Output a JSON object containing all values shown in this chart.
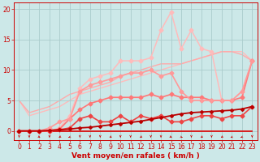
{
  "title": "",
  "xlabel": "Vent moyen/en rafales ( km/h )",
  "xlim": [
    -0.5,
    23.5
  ],
  "ylim": [
    -1.5,
    21
  ],
  "yticks": [
    0,
    5,
    10,
    15,
    20
  ],
  "xticks": [
    0,
    1,
    2,
    3,
    4,
    5,
    6,
    7,
    8,
    9,
    10,
    11,
    12,
    13,
    14,
    15,
    16,
    17,
    18,
    19,
    20,
    21,
    22,
    23
  ],
  "bg_color": "#cce8e8",
  "grid_color": "#aacccc",
  "series": [
    {
      "x": [
        0,
        1,
        2,
        3,
        4,
        5,
        6,
        7,
        8,
        9,
        10,
        11,
        12,
        13,
        14,
        15,
        16,
        17,
        18,
        19,
        20,
        21,
        22,
        23
      ],
      "y": [
        0,
        0,
        0,
        0,
        0,
        0,
        0,
        0,
        0,
        0,
        0,
        0,
        0,
        0,
        0,
        0,
        0,
        0,
        0,
        0,
        0,
        0,
        0,
        0
      ],
      "color": "#dd0000",
      "linewidth": 1.2,
      "marker": null,
      "markersize": 0,
      "zorder": 3
    },
    {
      "x": [
        0,
        1,
        2,
        3,
        4,
        5,
        6,
        7,
        8,
        9,
        10,
        11,
        12,
        13,
        14,
        15,
        16,
        17,
        18,
        19,
        20,
        21,
        22,
        23
      ],
      "y": [
        0,
        0,
        0,
        0.1,
        0.2,
        0.3,
        0.5,
        0.6,
        0.8,
        1.0,
        1.2,
        1.4,
        1.6,
        1.9,
        2.2,
        2.5,
        2.8,
        3.0,
        3.1,
        3.2,
        3.3,
        3.4,
        3.6,
        4.0
      ],
      "color": "#bb0000",
      "linewidth": 1.3,
      "marker": "D",
      "markersize": 2,
      "zorder": 4
    },
    {
      "x": [
        0,
        1,
        2,
        3,
        4,
        5,
        6,
        7,
        8,
        9,
        10,
        11,
        12,
        13,
        14,
        15,
        16,
        17,
        18,
        19,
        20,
        21,
        22,
        23
      ],
      "y": [
        5.0,
        2.5,
        3.0,
        3.5,
        4.0,
        5.0,
        6.0,
        6.5,
        7.0,
        7.5,
        8.0,
        8.5,
        9.0,
        9.5,
        10.0,
        10.5,
        11.0,
        11.5,
        12.0,
        12.5,
        13.0,
        13.0,
        13.0,
        11.5
      ],
      "color": "#ffbbbb",
      "linewidth": 1.0,
      "marker": null,
      "markersize": 0,
      "zorder": 1
    },
    {
      "x": [
        0,
        1,
        2,
        3,
        4,
        5,
        6,
        7,
        8,
        9,
        10,
        11,
        12,
        13,
        14,
        15,
        16,
        17,
        18,
        19,
        20,
        21,
        22,
        23
      ],
      "y": [
        5.0,
        3.0,
        3.5,
        4.0,
        5.0,
        6.0,
        6.5,
        7.0,
        7.5,
        8.0,
        9.0,
        9.5,
        10.0,
        10.5,
        11.0,
        11.0,
        11.0,
        11.5,
        12.0,
        12.5,
        13.0,
        13.0,
        12.5,
        11.5
      ],
      "color": "#ffaaaa",
      "linewidth": 1.0,
      "marker": null,
      "markersize": 0,
      "zorder": 1
    },
    {
      "x": [
        0,
        1,
        2,
        3,
        4,
        5,
        6,
        7,
        8,
        9,
        10,
        11,
        12,
        13,
        14,
        15,
        16,
        17,
        18,
        19,
        20,
        21,
        22,
        23
      ],
      "y": [
        0,
        0,
        0,
        0,
        0.3,
        2.0,
        3.5,
        4.5,
        5.0,
        5.5,
        5.5,
        5.5,
        5.5,
        6.0,
        5.5,
        6.0,
        5.5,
        5.5,
        5.5,
        5.0,
        5.0,
        5.0,
        5.5,
        11.5
      ],
      "color": "#ff7777",
      "linewidth": 1.2,
      "marker": "D",
      "markersize": 2.5,
      "zorder": 3
    },
    {
      "x": [
        0,
        1,
        2,
        3,
        4,
        5,
        6,
        7,
        8,
        9,
        10,
        11,
        12,
        13,
        14,
        15,
        16,
        17,
        18,
        19,
        20,
        21,
        22,
        23
      ],
      "y": [
        0,
        0,
        0,
        0.5,
        1.5,
        2.0,
        6.5,
        7.5,
        8.0,
        8.5,
        9.0,
        9.5,
        9.5,
        10.0,
        9.0,
        9.5,
        6.5,
        5.0,
        5.0,
        5.0,
        5.0,
        5.0,
        6.5,
        11.5
      ],
      "color": "#ff9999",
      "linewidth": 1.2,
      "marker": "D",
      "markersize": 2.5,
      "zorder": 3
    },
    {
      "x": [
        0,
        1,
        2,
        3,
        4,
        5,
        6,
        7,
        8,
        9,
        10,
        11,
        12,
        13,
        14,
        15,
        16,
        17,
        18,
        19,
        20,
        21,
        22,
        23
      ],
      "y": [
        0,
        0,
        0,
        0,
        0.5,
        2.5,
        7.0,
        8.5,
        9.0,
        9.5,
        11.5,
        11.5,
        11.5,
        12.0,
        16.5,
        19.5,
        13.5,
        16.5,
        13.5,
        13.0,
        5.0,
        5.0,
        6.5,
        11.5
      ],
      "color": "#ffbbbb",
      "linewidth": 1.1,
      "marker": "D",
      "markersize": 2.5,
      "zorder": 2
    },
    {
      "x": [
        0,
        1,
        2,
        3,
        4,
        5,
        6,
        7,
        8,
        9,
        10,
        11,
        12,
        13,
        14,
        15,
        16,
        17,
        18,
        19,
        20,
        21,
        22,
        23
      ],
      "y": [
        0,
        0,
        0,
        0,
        0.2,
        0.5,
        2.0,
        2.5,
        1.5,
        1.5,
        2.5,
        1.5,
        2.5,
        2.0,
        2.5,
        1.5,
        1.5,
        2.0,
        2.5,
        2.5,
        2.0,
        2.5,
        2.5,
        4.0
      ],
      "color": "#ee4444",
      "linewidth": 1.2,
      "marker": "D",
      "markersize": 2.5,
      "zorder": 3
    }
  ],
  "axis_color": "#cc0000",
  "tick_color": "#cc0000",
  "label_color": "#cc0000",
  "label_fontsize": 6.5,
  "tick_fontsize": 5.5
}
